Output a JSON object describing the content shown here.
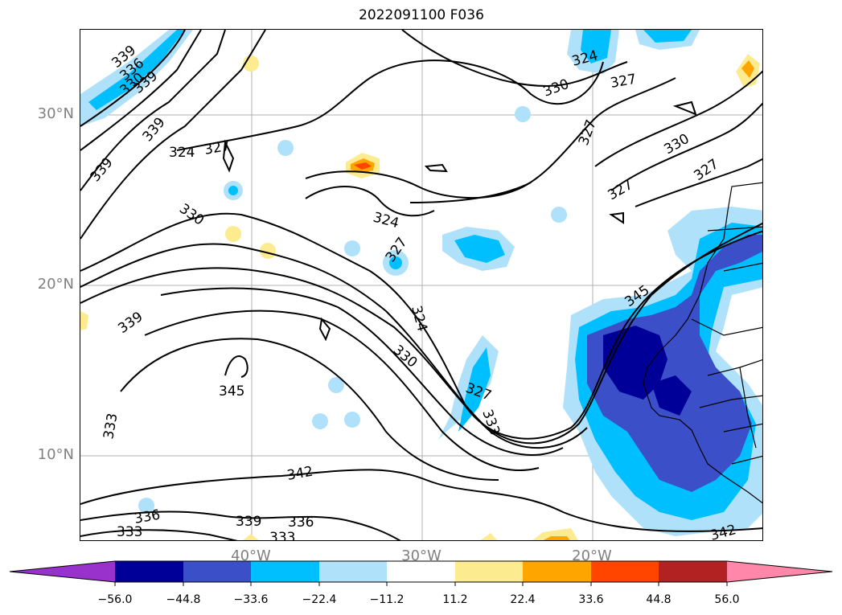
{
  "title": "2022091100 F036",
  "map": {
    "lat_labels": [
      "30°N",
      "20°N",
      "10°N"
    ],
    "lon_labels": [
      "40°W",
      "30°W",
      "20°W"
    ],
    "contour_labels": [
      "339",
      "336",
      "330",
      "339",
      "339",
      "324",
      "327",
      "339",
      "330",
      "339",
      "345",
      "333",
      "333",
      "336",
      "339",
      "336",
      "333",
      "342",
      "324",
      "327",
      "330",
      "327",
      "327",
      "330",
      "327",
      "324",
      "330",
      "327",
      "345",
      "324",
      "327",
      "333",
      "342"
    ]
  },
  "colorbar": {
    "colors": [
      "#9932cc",
      "#000099",
      "#3b4fc9",
      "#00bfff",
      "#afe2fa",
      "#ffffff",
      "#fdeb8f",
      "#ffa500",
      "#ff4500",
      "#b22222",
      "#ff88aa"
    ],
    "tick_labels": [
      "−56.0",
      "−44.8",
      "−33.6",
      "−22.4",
      "−11.2",
      "11.2",
      "22.4",
      "33.6",
      "44.8",
      "56.0"
    ]
  }
}
